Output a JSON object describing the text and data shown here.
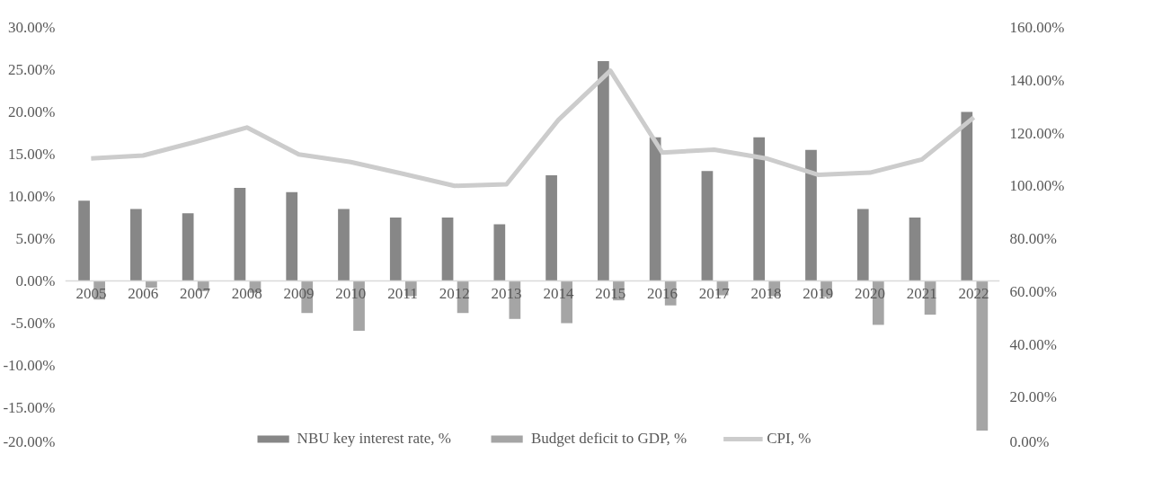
{
  "chart_data": {
    "type": "bar",
    "categories": [
      "2005",
      "2006",
      "2007",
      "2008",
      "2009",
      "2010",
      "2011",
      "2012",
      "2013",
      "2014",
      "2015",
      "2016",
      "2017",
      "2018",
      "2019",
      "2020",
      "2021",
      "2022"
    ],
    "series": [
      {
        "name": "NBU key interest rate, %",
        "color": "#878787",
        "values": [
          9.5,
          8.5,
          8,
          11,
          10.5,
          8.5,
          7.5,
          7.5,
          6.7,
          12.5,
          26,
          17,
          13,
          17,
          15.5,
          8.5,
          7.5,
          20
        ]
      },
      {
        "name": "Budget deficit to GDP, %",
        "color": "#a5a5a5",
        "values": [
          -2.2,
          -0.8,
          -1.2,
          -1.4,
          -3.8,
          -5.9,
          -1.8,
          -3.8,
          -4.5,
          -5,
          -2.3,
          -2.9,
          -1.7,
          -1.8,
          -1.9,
          -5.2,
          -4,
          -17.7
        ]
      },
      {
        "name": "CPI, %",
        "type": "line",
        "axis": "y2",
        "color": "#cccccc",
        "values": [
          110.4,
          111.5,
          116.6,
          122.1,
          111.9,
          109,
          104.6,
          100,
          100.6,
          125,
          143.6,
          112.6,
          113.7,
          110.4,
          104.2,
          105,
          110,
          125.9
        ]
      }
    ],
    "ylim": [
      -20,
      30
    ],
    "yticks": [
      {
        "value": -20,
        "label": "-20.00%"
      },
      {
        "value": -15,
        "label": "-15.00%"
      },
      {
        "value": -10,
        "label": "-10.00%"
      },
      {
        "value": -5,
        "label": "-5.00%"
      },
      {
        "value": 0,
        "label": "0.00%"
      },
      {
        "value": 5,
        "label": "5.00%"
      },
      {
        "value": 10,
        "label": "10.00%"
      },
      {
        "value": 15,
        "label": "15.00%"
      },
      {
        "value": 20,
        "label": "20.00%"
      },
      {
        "value": 25,
        "label": "25.00%"
      },
      {
        "value": 30,
        "label": "30.00%"
      }
    ],
    "y2lim": [
      0,
      160
    ],
    "y2ticks": [
      {
        "value": 0,
        "label": "0.00%"
      },
      {
        "value": 20,
        "label": "20.00%"
      },
      {
        "value": 40,
        "label": "40.00%"
      },
      {
        "value": 60,
        "label": "60.00%"
      },
      {
        "value": 80,
        "label": "80.00%"
      },
      {
        "value": 100,
        "label": "100.00%"
      },
      {
        "value": 120,
        "label": "120.00%"
      },
      {
        "value": 140,
        "label": "140.00%"
      },
      {
        "value": 160,
        "label": "160.00%"
      }
    ],
    "grid": false,
    "legend": "bottom",
    "marker": "none"
  }
}
